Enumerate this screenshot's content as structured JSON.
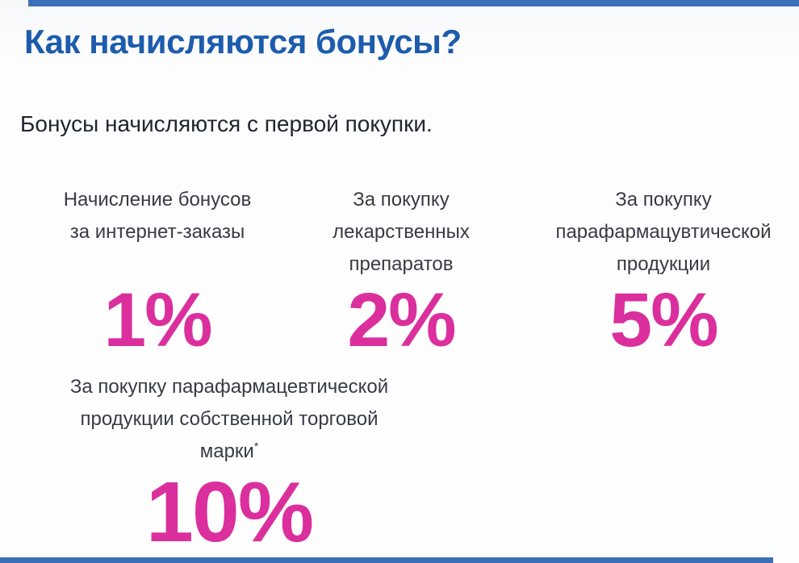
{
  "page": {
    "accent_blue": "#1d5cad",
    "accent_pink": "#db2f9d",
    "bar_color": "#3d6fb8",
    "background": "#fdfdfe"
  },
  "header": {
    "title": "Как начисляются бонусы?"
  },
  "intro": {
    "text": "Бонусы начисляются с первой покупки."
  },
  "bonus_items": [
    {
      "id": "internet-orders",
      "label_lines": [
        "Начисление бонусов",
        "за интернет-заказы"
      ],
      "value": "1%"
    },
    {
      "id": "medicines",
      "label_lines": [
        "За покупку",
        "лекарственных",
        "препаратов"
      ],
      "value": "2%"
    },
    {
      "id": "parapharmaceutical",
      "label_lines": [
        "За покупку",
        "парафармацувтической",
        "продукции"
      ],
      "value": "5%"
    },
    {
      "id": "own-brand",
      "label_lines": [
        "За покупку парафармацевтической",
        "продукции собственной торговой",
        "марки"
      ],
      "footnote_marker": "*",
      "value": "10%"
    }
  ]
}
